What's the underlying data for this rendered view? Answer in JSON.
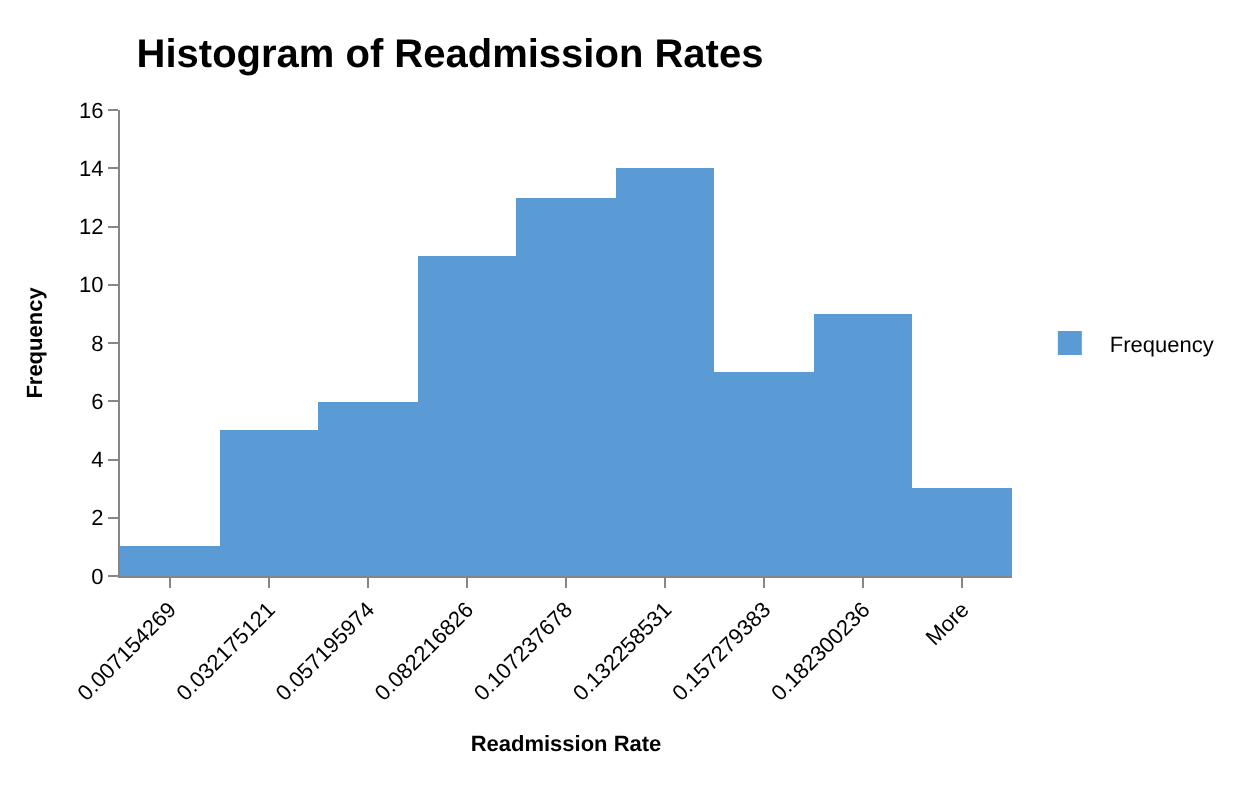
{
  "chart_data": {
    "type": "bar",
    "title": "Histogram of Readmission Rates",
    "xlabel": "Readmission Rate",
    "ylabel": "Frequency",
    "categories": [
      "0.007154269",
      "0.032175121",
      "0.057195974",
      "0.082216826",
      "0.107237678",
      "0.132258531",
      "0.157279383",
      "0.182300236",
      "More"
    ],
    "series": [
      {
        "name": "Frequency",
        "color": "#5b9bd5",
        "values": [
          1,
          5,
          6,
          11,
          13,
          14,
          7,
          9,
          3
        ]
      }
    ],
    "ylim": [
      0,
      16
    ],
    "yticks": [
      0,
      2,
      4,
      6,
      8,
      10,
      12,
      14,
      16
    ],
    "legend": "right"
  }
}
